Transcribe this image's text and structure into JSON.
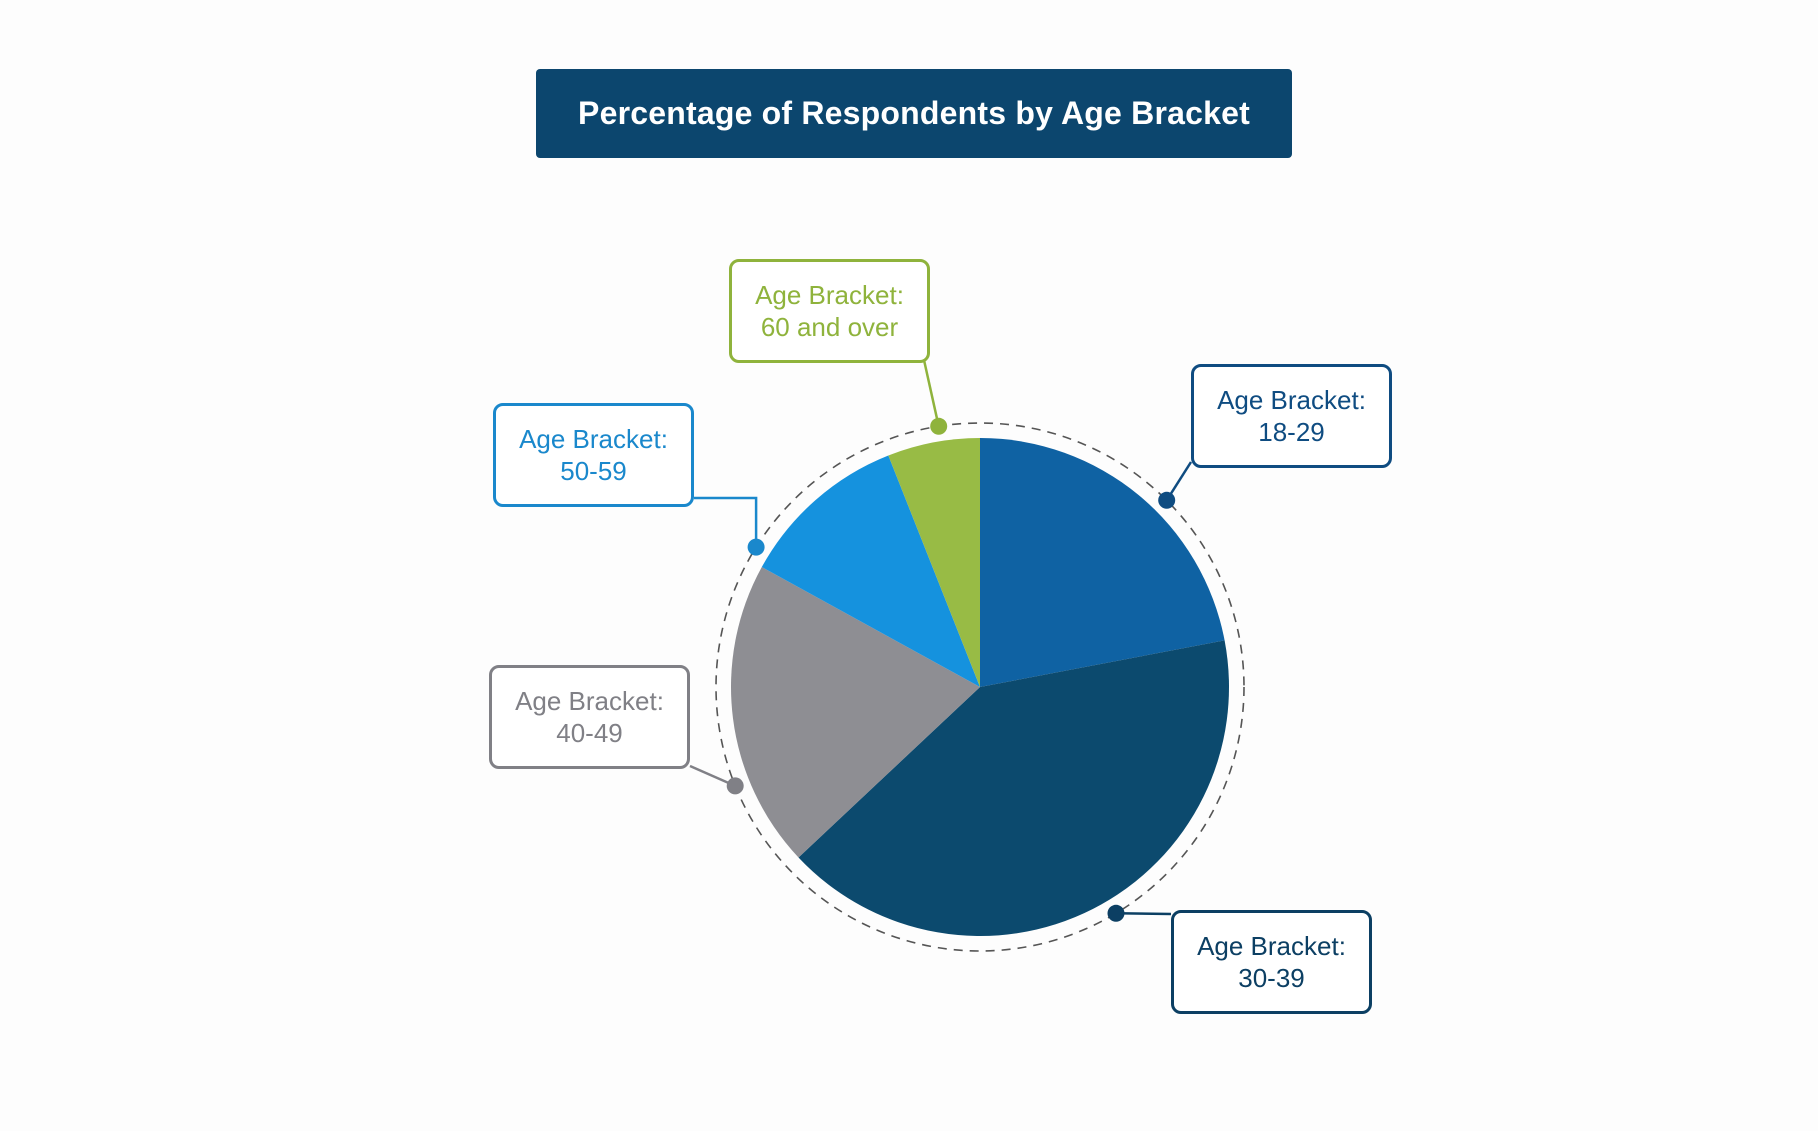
{
  "chart_data": {
    "type": "pie",
    "title": "Percentage of Respondents by Age Bracket",
    "start_angle_deg": 0,
    "direction": "clockwise",
    "slices": [
      {
        "category": "18-29",
        "label_line1": "Age Bracket:",
        "label_line2": "18-29",
        "value": 22,
        "color": "#0f62a3",
        "label_color": "#0f4c81"
      },
      {
        "category": "30-39",
        "label_line1": "Age Bracket:",
        "label_line2": "30-39",
        "value": 41,
        "color": "#0c4a6e",
        "label_color": "#0c3f63"
      },
      {
        "category": "40-49",
        "label_line1": "Age Bracket:",
        "label_line2": "40-49",
        "value": 20,
        "color": "#8e8e93",
        "label_color": "#808086"
      },
      {
        "category": "50-59",
        "label_line1": "Age Bracket:",
        "label_line2": "50-59",
        "value": 11,
        "color": "#1592de",
        "label_color": "#1a88cc"
      },
      {
        "category": "60 and over",
        "label_line1": "Age Bracket:",
        "label_line2": "60 and over",
        "value": 6,
        "color": "#98bb45",
        "label_color": "#8fb33c"
      }
    ]
  }
}
